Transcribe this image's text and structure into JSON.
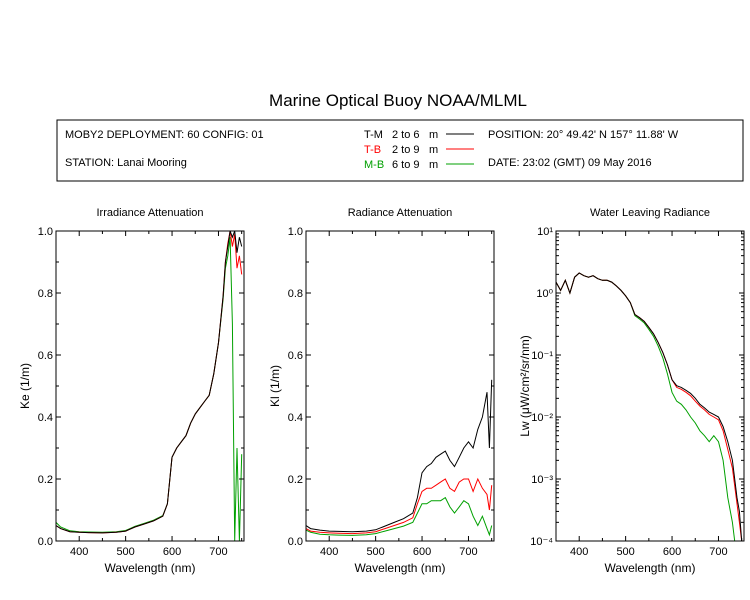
{
  "title": "Marine Optical Buoy NOAA/MLML",
  "info": {
    "deployment": "MOBY2 DEPLOYMENT: 60 CONFIG: 01",
    "station": "STATION: Lanai Mooring",
    "position": "POSITION: 20° 49.42' N   157° 11.88' W",
    "date": "DATE: 23:02 (GMT) 09 May 2016"
  },
  "legend": [
    {
      "code": "T-M",
      "range": "2 to 6",
      "unit": "m",
      "color": "#000000"
    },
    {
      "code": "T-B",
      "range": "2 to 9",
      "unit": "m",
      "color": "#ff0000"
    },
    {
      "code": "M-B",
      "range": "6 to 9",
      "unit": "m",
      "color": "#00a000"
    }
  ],
  "chart_data": [
    {
      "type": "line",
      "title": "Irradiance Attenuation",
      "xlabel": "Wavelength (nm)",
      "ylabel": "Ke  (1/m)",
      "xlim": [
        350,
        755
      ],
      "ylim": [
        0,
        1
      ],
      "yscale": "linear",
      "xticks": [
        400,
        500,
        600,
        700
      ],
      "yticks": [
        "0.0",
        "0.2",
        "0.4",
        "0.6",
        "0.8",
        "1.0"
      ],
      "series": [
        {
          "name": "T-M",
          "color": "#000000",
          "x": [
            350,
            360,
            380,
            400,
            420,
            450,
            480,
            500,
            520,
            540,
            560,
            580,
            590,
            600,
            610,
            620,
            630,
            640,
            650,
            660,
            670,
            680,
            690,
            700,
            710,
            715,
            720,
            725,
            730,
            735,
            740,
            745,
            750
          ],
          "y": [
            0.05,
            0.04,
            0.03,
            0.028,
            0.027,
            0.026,
            0.028,
            0.032,
            0.045,
            0.055,
            0.065,
            0.08,
            0.12,
            0.27,
            0.3,
            0.32,
            0.34,
            0.38,
            0.41,
            0.43,
            0.45,
            0.47,
            0.54,
            0.64,
            0.79,
            0.9,
            0.95,
            1.0,
            0.98,
            1.0,
            0.93,
            0.98,
            0.95
          ]
        },
        {
          "name": "T-B",
          "color": "#ff0000",
          "x": [
            350,
            360,
            380,
            400,
            420,
            450,
            480,
            500,
            520,
            540,
            560,
            580,
            590,
            600,
            610,
            620,
            630,
            640,
            650,
            660,
            670,
            680,
            690,
            700,
            710,
            715,
            720,
            725,
            730,
            735,
            740,
            745,
            750
          ],
          "y": [
            0.05,
            0.04,
            0.03,
            0.028,
            0.027,
            0.026,
            0.028,
            0.032,
            0.045,
            0.055,
            0.065,
            0.08,
            0.12,
            0.27,
            0.3,
            0.32,
            0.34,
            0.38,
            0.41,
            0.43,
            0.45,
            0.47,
            0.54,
            0.64,
            0.79,
            0.9,
            0.96,
            1.0,
            0.95,
            0.99,
            0.88,
            0.92,
            0.86
          ]
        },
        {
          "name": "M-B",
          "color": "#00a000",
          "x": [
            350,
            360,
            380,
            400,
            420,
            450,
            480,
            500,
            520,
            540,
            560,
            580,
            590,
            600,
            610,
            620,
            630,
            640,
            650,
            660,
            670,
            680,
            690,
            700,
            710,
            715,
            720,
            725,
            730,
            735,
            740,
            745,
            750
          ],
          "y": [
            0.06,
            0.045,
            0.033,
            0.03,
            0.029,
            0.028,
            0.03,
            0.034,
            0.047,
            0.057,
            0.067,
            0.082,
            0.12,
            0.27,
            0.3,
            0.32,
            0.34,
            0.38,
            0.41,
            0.43,
            0.45,
            0.47,
            0.54,
            0.64,
            0.78,
            0.88,
            0.92,
            0.98,
            0.7,
            0.0,
            0.3,
            0.0,
            0.28
          ]
        }
      ]
    },
    {
      "type": "line",
      "title": "Radiance Attenuation",
      "xlabel": "Wavelength (nm)",
      "ylabel": "Kl  (1/m)",
      "xlim": [
        350,
        755
      ],
      "ylim": [
        0,
        1
      ],
      "yscale": "linear",
      "xticks": [
        400,
        500,
        600,
        700
      ],
      "yticks": [
        "0.0",
        "0.2",
        "0.4",
        "0.6",
        "0.8",
        "1.0"
      ],
      "series": [
        {
          "name": "T-M",
          "color": "#000000",
          "x": [
            350,
            360,
            380,
            400,
            420,
            450,
            480,
            500,
            520,
            540,
            560,
            580,
            590,
            600,
            610,
            620,
            630,
            640,
            650,
            660,
            670,
            680,
            690,
            700,
            710,
            720,
            730,
            740,
            745,
            750
          ],
          "y": [
            0.05,
            0.04,
            0.035,
            0.032,
            0.031,
            0.03,
            0.032,
            0.036,
            0.048,
            0.06,
            0.072,
            0.09,
            0.14,
            0.22,
            0.24,
            0.25,
            0.27,
            0.28,
            0.29,
            0.26,
            0.24,
            0.27,
            0.3,
            0.32,
            0.3,
            0.36,
            0.4,
            0.48,
            0.3,
            0.52
          ]
        },
        {
          "name": "T-B",
          "color": "#ff0000",
          "x": [
            350,
            360,
            380,
            400,
            420,
            450,
            480,
            500,
            520,
            540,
            560,
            580,
            590,
            600,
            610,
            620,
            630,
            640,
            650,
            660,
            670,
            680,
            690,
            700,
            710,
            720,
            730,
            740,
            745,
            750
          ],
          "y": [
            0.04,
            0.032,
            0.028,
            0.026,
            0.025,
            0.024,
            0.026,
            0.03,
            0.04,
            0.05,
            0.06,
            0.075,
            0.12,
            0.16,
            0.17,
            0.17,
            0.18,
            0.19,
            0.2,
            0.17,
            0.16,
            0.19,
            0.2,
            0.2,
            0.16,
            0.2,
            0.17,
            0.15,
            0.1,
            0.18
          ]
        },
        {
          "name": "M-B",
          "color": "#00a000",
          "x": [
            350,
            360,
            380,
            400,
            420,
            450,
            480,
            500,
            520,
            540,
            560,
            580,
            590,
            600,
            610,
            620,
            630,
            640,
            650,
            660,
            670,
            680,
            690,
            700,
            710,
            720,
            730,
            740,
            745,
            750
          ],
          "y": [
            0.035,
            0.028,
            0.022,
            0.02,
            0.019,
            0.018,
            0.02,
            0.024,
            0.032,
            0.04,
            0.048,
            0.06,
            0.09,
            0.12,
            0.12,
            0.13,
            0.13,
            0.13,
            0.14,
            0.11,
            0.09,
            0.11,
            0.13,
            0.12,
            0.08,
            0.05,
            0.08,
            0.04,
            0.02,
            0.05
          ]
        }
      ]
    },
    {
      "type": "line",
      "title": "Water Leaving Radiance",
      "xlabel": "Wavelength (nm)",
      "ylabel": "Lw  (μW/cm²/sr/nm)",
      "xlim": [
        350,
        755
      ],
      "ylim": [
        0.0001,
        10
      ],
      "yscale": "log",
      "xticks": [
        400,
        500,
        600,
        700
      ],
      "yticks": [
        "10⁻⁴",
        "10⁻³",
        "10⁻²",
        "10⁻¹",
        "10⁰",
        "10¹"
      ],
      "series": [
        {
          "name": "T-M",
          "color": "#000000",
          "x": [
            350,
            360,
            370,
            380,
            390,
            400,
            410,
            420,
            430,
            440,
            450,
            460,
            470,
            480,
            490,
            500,
            510,
            520,
            530,
            540,
            550,
            560,
            570,
            580,
            590,
            600,
            610,
            620,
            630,
            640,
            650,
            660,
            670,
            680,
            690,
            700,
            710,
            720,
            730,
            740,
            745,
            750
          ],
          "y": [
            1.5,
            1.1,
            1.6,
            1.0,
            1.8,
            2.1,
            1.9,
            1.8,
            1.9,
            1.7,
            1.6,
            1.6,
            1.5,
            1.3,
            1.1,
            0.9,
            0.7,
            0.45,
            0.4,
            0.35,
            0.28,
            0.22,
            0.16,
            0.11,
            0.07,
            0.04,
            0.032,
            0.03,
            0.027,
            0.024,
            0.02,
            0.016,
            0.014,
            0.012,
            0.011,
            0.01,
            0.007,
            0.004,
            0.002,
            0.0005,
            0.0003,
            0.0001
          ]
        },
        {
          "name": "T-B",
          "color": "#ff0000",
          "x": [
            350,
            360,
            370,
            380,
            390,
            400,
            410,
            420,
            430,
            440,
            450,
            460,
            470,
            480,
            490,
            500,
            510,
            520,
            530,
            540,
            550,
            560,
            570,
            580,
            590,
            600,
            610,
            620,
            630,
            640,
            650,
            660,
            670,
            680,
            690,
            700,
            710,
            720,
            730,
            740,
            745,
            750
          ],
          "y": [
            1.5,
            1.1,
            1.6,
            1.0,
            1.8,
            2.1,
            1.9,
            1.8,
            1.9,
            1.7,
            1.6,
            1.6,
            1.5,
            1.3,
            1.1,
            0.9,
            0.7,
            0.45,
            0.4,
            0.35,
            0.28,
            0.22,
            0.16,
            0.11,
            0.07,
            0.04,
            0.03,
            0.028,
            0.025,
            0.022,
            0.018,
            0.015,
            0.013,
            0.011,
            0.01,
            0.009,
            0.006,
            0.003,
            0.0015,
            0.0004,
            0.0002,
            0.0001
          ]
        },
        {
          "name": "M-B",
          "color": "#00a000",
          "x": [
            350,
            360,
            370,
            380,
            390,
            400,
            410,
            420,
            430,
            440,
            450,
            460,
            470,
            480,
            490,
            500,
            510,
            520,
            530,
            540,
            550,
            560,
            570,
            580,
            590,
            600,
            610,
            620,
            630,
            640,
            650,
            660,
            670,
            680,
            690,
            700,
            710,
            720,
            730,
            735,
            740
          ],
          "y": [
            1.5,
            1.1,
            1.6,
            1.0,
            1.8,
            2.1,
            1.9,
            1.8,
            1.9,
            1.7,
            1.6,
            1.6,
            1.5,
            1.3,
            1.1,
            0.9,
            0.7,
            0.43,
            0.38,
            0.33,
            0.26,
            0.2,
            0.14,
            0.09,
            0.05,
            0.025,
            0.018,
            0.016,
            0.013,
            0.01,
            0.008,
            0.006,
            0.005,
            0.004,
            0.005,
            0.004,
            0.002,
            0.0005,
            0.0002,
            0.0001,
            0.0001
          ]
        }
      ]
    }
  ]
}
